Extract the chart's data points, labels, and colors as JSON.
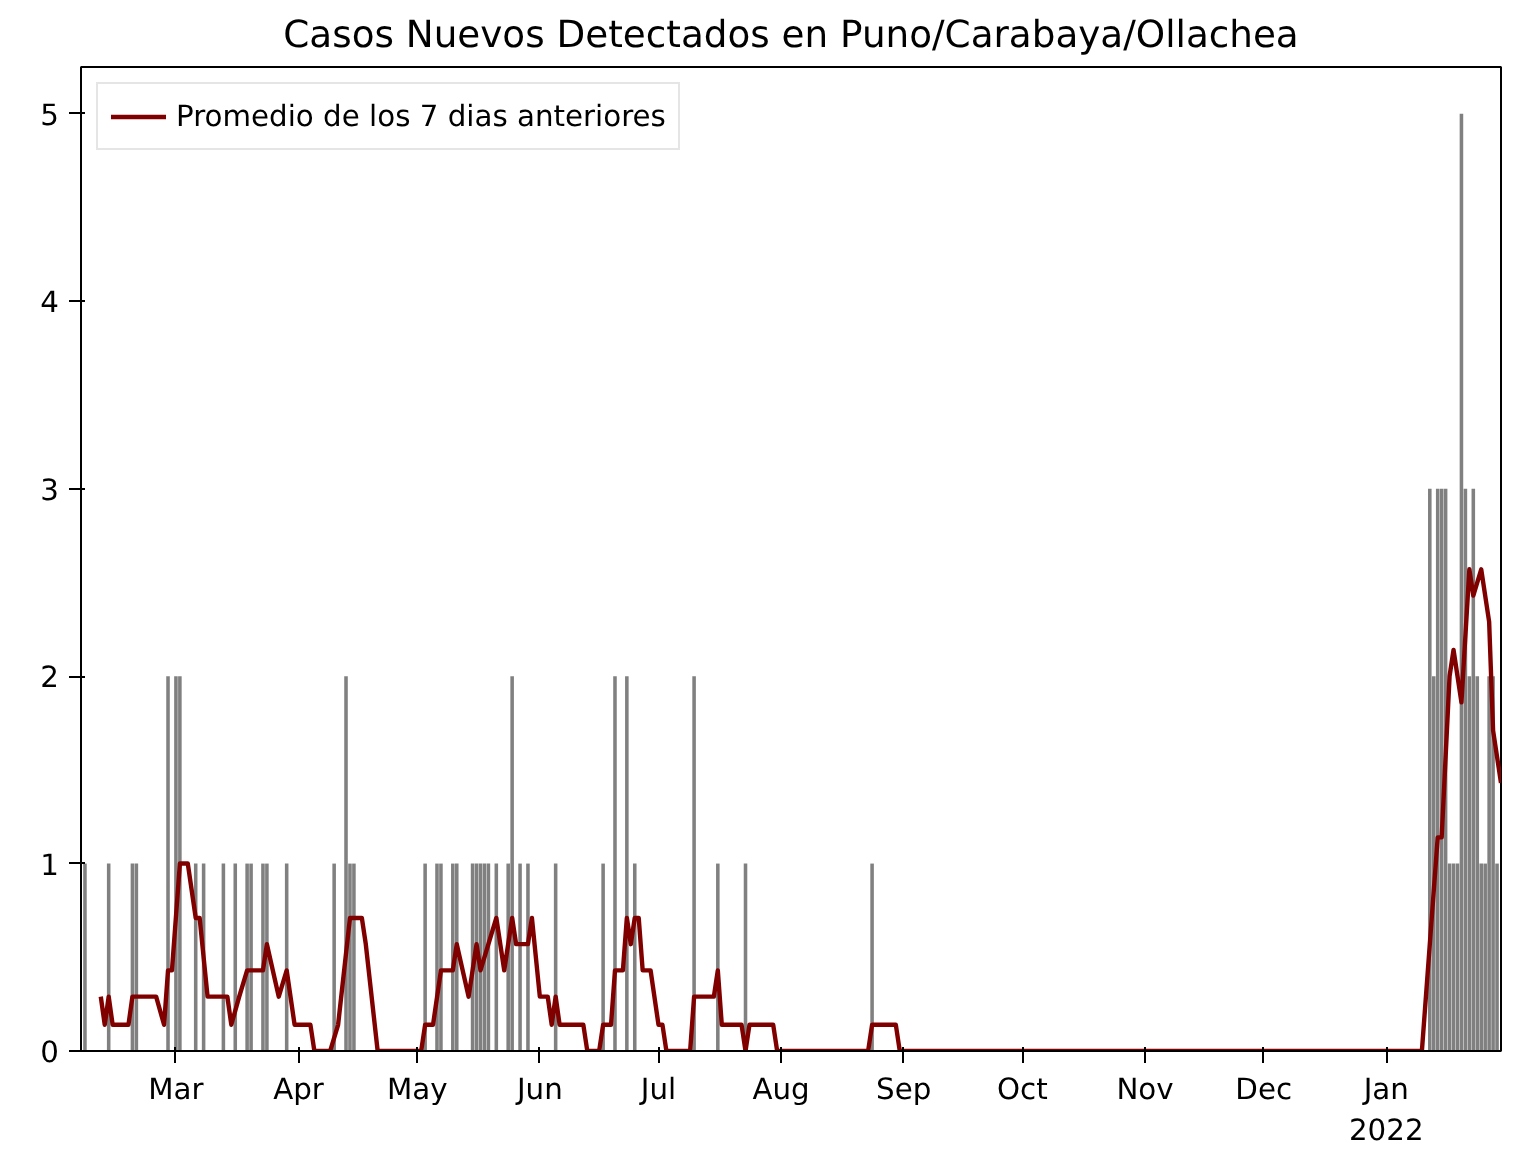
{
  "chart_data": {
    "type": "bar",
    "title": "Casos Nuevos Detectados en Puno/Carabaya/Ollachea",
    "xlim": [
      "2021-02-05",
      "2022-01-30"
    ],
    "xticks": [
      {
        "value": "2021-03-01",
        "label": "Mar"
      },
      {
        "value": "2021-04-01",
        "label": "Apr"
      },
      {
        "value": "2021-05-01",
        "label": "May"
      },
      {
        "value": "2021-06-01",
        "label": "Jun"
      },
      {
        "value": "2021-07-01",
        "label": "Jul"
      },
      {
        "value": "2021-08-01",
        "label": "Aug"
      },
      {
        "value": "2021-09-01",
        "label": "Sep"
      },
      {
        "value": "2021-10-01",
        "label": "Oct"
      },
      {
        "value": "2021-11-01",
        "label": "Nov"
      },
      {
        "value": "2021-12-01",
        "label": "Dec"
      },
      {
        "value": "2022-01-01",
        "label": "Jan\n2022"
      }
    ],
    "ylim": [
      0,
      5.25
    ],
    "yticks": [
      0,
      1,
      2,
      3,
      4,
      5
    ],
    "grid": false,
    "legend": "top left",
    "series": [
      {
        "color": "#808080",
        "x": [
          "2021-02-06",
          "2021-02-12",
          "2021-02-18",
          "2021-02-19",
          "2021-02-27",
          "2021-03-01",
          "2021-03-02",
          "2021-03-06",
          "2021-03-08",
          "2021-03-13",
          "2021-03-16",
          "2021-03-19",
          "2021-03-20",
          "2021-03-23",
          "2021-03-24",
          "2021-03-29",
          "2021-04-10",
          "2021-04-13",
          "2021-04-14",
          "2021-04-15",
          "2021-05-03",
          "2021-05-06",
          "2021-05-07",
          "2021-05-10",
          "2021-05-11",
          "2021-05-15",
          "2021-05-16",
          "2021-05-17",
          "2021-05-18",
          "2021-05-19",
          "2021-05-21",
          "2021-05-24",
          "2021-05-25",
          "2021-05-27",
          "2021-05-29",
          "2021-06-05",
          "2021-06-17",
          "2021-06-20",
          "2021-06-23",
          "2021-06-25",
          "2021-07-10",
          "2021-07-16",
          "2021-07-23",
          "2021-08-24",
          "2022-01-12",
          "2022-01-13",
          "2022-01-14",
          "2022-01-15",
          "2022-01-16",
          "2022-01-17",
          "2022-01-18",
          "2022-01-19",
          "2022-01-20",
          "2022-01-21",
          "2022-01-22",
          "2022-01-23",
          "2022-01-24",
          "2022-01-25",
          "2022-01-26",
          "2022-01-27",
          "2022-01-28",
          "2022-01-29"
        ],
        "values": [
          1,
          1,
          1,
          1,
          2,
          2,
          2,
          1,
          1,
          1,
          1,
          1,
          1,
          1,
          1,
          1,
          1,
          2,
          1,
          1,
          1,
          1,
          1,
          1,
          1,
          1,
          1,
          1,
          1,
          1,
          1,
          1,
          2,
          1,
          1,
          1,
          1,
          2,
          2,
          1,
          2,
          1,
          1,
          1,
          3,
          2,
          3,
          3,
          3,
          1,
          1,
          1,
          5,
          3,
          2,
          3,
          2,
          1,
          1,
          2,
          2,
          1
        ]
      },
      {
        "type": "line",
        "name": "Promedio de los 7 dias anteriores",
        "color": "#800000",
        "x": [
          "2021-02-10",
          "2021-02-11",
          "2021-02-12",
          "2021-02-13",
          "2021-02-17",
          "2021-02-18",
          "2021-02-24",
          "2021-02-26",
          "2021-02-27",
          "2021-02-28",
          "2021-03-02",
          "2021-03-04",
          "2021-03-06",
          "2021-03-07",
          "2021-03-09",
          "2021-03-14",
          "2021-03-15",
          "2021-03-17",
          "2021-03-19",
          "2021-03-23",
          "2021-03-24",
          "2021-03-27",
          "2021-03-29",
          "2021-03-31",
          "2021-04-04",
          "2021-04-05",
          "2021-04-09",
          "2021-04-11",
          "2021-04-14",
          "2021-04-17",
          "2021-04-18",
          "2021-04-21",
          "2021-05-02",
          "2021-05-03",
          "2021-05-05",
          "2021-05-07",
          "2021-05-10",
          "2021-05-11",
          "2021-05-14",
          "2021-05-16",
          "2021-05-17",
          "2021-05-19",
          "2021-05-21",
          "2021-05-23",
          "2021-05-25",
          "2021-05-26",
          "2021-05-29",
          "2021-05-30",
          "2021-06-01",
          "2021-06-03",
          "2021-06-04",
          "2021-06-05",
          "2021-06-06",
          "2021-06-12",
          "2021-06-13",
          "2021-06-16",
          "2021-06-17",
          "2021-06-19",
          "2021-06-20",
          "2021-06-22",
          "2021-06-23",
          "2021-06-24",
          "2021-06-25",
          "2021-06-26",
          "2021-06-27",
          "2021-06-29",
          "2021-07-01",
          "2021-07-02",
          "2021-07-03",
          "2021-07-09",
          "2021-07-10",
          "2021-07-15",
          "2021-07-16",
          "2021-07-17",
          "2021-07-22",
          "2021-07-23",
          "2021-07-24",
          "2021-07-30",
          "2021-07-31",
          "2021-08-23",
          "2021-08-24",
          "2021-08-30",
          "2021-08-31",
          "2022-01-10",
          "2022-01-14",
          "2022-01-15",
          "2022-01-17",
          "2022-01-18",
          "2022-01-20",
          "2022-01-22",
          "2022-01-23",
          "2022-01-25",
          "2022-01-27",
          "2022-01-28",
          "2022-01-30"
        ],
        "values": [
          0.29,
          0.14,
          0.29,
          0.14,
          0.14,
          0.29,
          0.29,
          0.14,
          0.43,
          0.43,
          1.0,
          1.0,
          0.71,
          0.71,
          0.29,
          0.29,
          0.14,
          0.29,
          0.43,
          0.43,
          0.57,
          0.29,
          0.43,
          0.14,
          0.14,
          0,
          0,
          0.14,
          0.71,
          0.71,
          0.57,
          0,
          0,
          0.14,
          0.14,
          0.43,
          0.43,
          0.57,
          0.29,
          0.57,
          0.43,
          0.57,
          0.71,
          0.43,
          0.71,
          0.57,
          0.57,
          0.71,
          0.29,
          0.29,
          0.14,
          0.29,
          0.14,
          0.14,
          0,
          0,
          0.14,
          0.14,
          0.43,
          0.43,
          0.71,
          0.57,
          0.71,
          0.71,
          0.43,
          0.43,
          0.14,
          0.14,
          0,
          0,
          0.29,
          0.29,
          0.43,
          0.14,
          0.14,
          0,
          0.14,
          0.14,
          0,
          0,
          0.14,
          0.14,
          0,
          0,
          1.14,
          1.14,
          2.0,
          2.14,
          1.86,
          2.57,
          2.43,
          2.57,
          2.29,
          1.71,
          1.43
        ]
      }
    ]
  }
}
